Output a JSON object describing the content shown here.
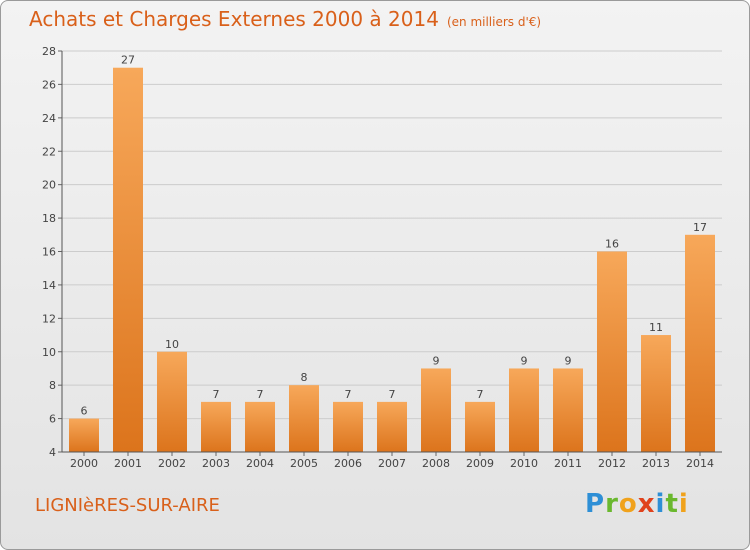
{
  "title": "Achats et Charges Externes 2000 à 2014",
  "unit_note": "(en milliers d'€)",
  "place": "LIGNIèRES-SUR-AIRE",
  "logo": {
    "letters": [
      "P",
      "r",
      "o",
      "x",
      "i",
      "t",
      "i"
    ],
    "colors": [
      "#2e8fd6",
      "#6ab82e",
      "#f0a21c",
      "#e0421c",
      "#2e8fd6",
      "#6ab82e",
      "#f0a21c"
    ]
  },
  "colors": {
    "accent": "#d9601a",
    "bar_light": "#f7a85a",
    "bar_dark": "#dc741c",
    "grid": "#cccccc",
    "text": "#444444"
  },
  "chart_data": {
    "type": "bar",
    "categories": [
      "2000",
      "2001",
      "2002",
      "2003",
      "2004",
      "2005",
      "2006",
      "2007",
      "2008",
      "2009",
      "2010",
      "2011",
      "2012",
      "2013",
      "2014"
    ],
    "values": [
      6,
      27,
      10,
      7,
      7,
      8,
      7,
      7,
      9,
      7,
      9,
      9,
      16,
      11,
      17
    ],
    "ylim": [
      4,
      28
    ],
    "yticks": [
      4,
      6,
      8,
      10,
      12,
      14,
      16,
      18,
      20,
      22,
      24,
      26,
      28
    ],
    "grid": true
  }
}
